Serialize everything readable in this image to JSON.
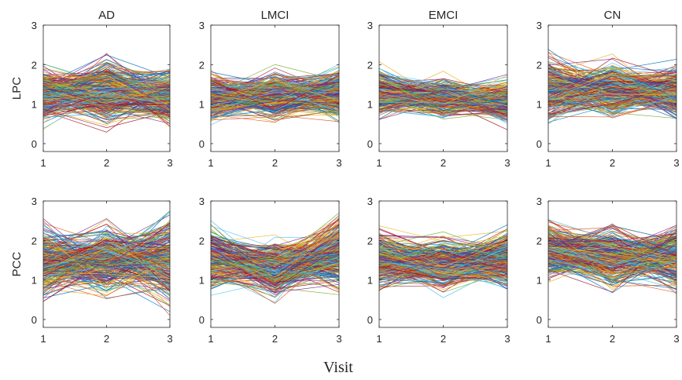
{
  "figure": {
    "xlabel": "Visit"
  },
  "chart_data": [
    {
      "type": "line",
      "title": "AD",
      "ylabel": "LPC",
      "x": [
        1,
        2,
        3
      ],
      "xlim": [
        1,
        3
      ],
      "ylim": [
        -0.2,
        3
      ],
      "xticks": [
        "1",
        "2",
        "3"
      ],
      "yticks": [
        "0",
        "1",
        "2",
        "3"
      ],
      "grid": false,
      "summary": {
        "n_lines": 300,
        "visit_ranges": [
          [
            0.2,
            2.2
          ],
          [
            0.2,
            2.5
          ],
          [
            0.4,
            2.2
          ]
        ],
        "visit_center": [
          1.2,
          1.3,
          1.2
        ]
      }
    },
    {
      "type": "line",
      "title": "LMCI",
      "ylabel": "",
      "x": [
        1,
        2,
        3
      ],
      "xlim": [
        1,
        3
      ],
      "ylim": [
        -0.2,
        3
      ],
      "xticks": [
        "1",
        "2",
        "3"
      ],
      "yticks": [
        "0",
        "1",
        "2",
        "3"
      ],
      "grid": false,
      "summary": {
        "n_lines": 300,
        "visit_ranges": [
          [
            0.4,
            2.15
          ],
          [
            0.45,
            2.1
          ],
          [
            0.5,
            2.25
          ]
        ],
        "visit_center": [
          1.2,
          1.2,
          1.3
        ]
      }
    },
    {
      "type": "line",
      "title": "EMCI",
      "ylabel": "",
      "x": [
        1,
        2,
        3
      ],
      "xlim": [
        1,
        3
      ],
      "ylim": [
        -0.2,
        3
      ],
      "xticks": [
        "1",
        "2",
        "3"
      ],
      "yticks": [
        "0",
        "1",
        "2",
        "3"
      ],
      "grid": false,
      "summary": {
        "n_lines": 300,
        "visit_ranges": [
          [
            0.5,
            2.15
          ],
          [
            0.4,
            1.85
          ],
          [
            0.3,
            1.85
          ]
        ],
        "visit_center": [
          1.3,
          1.15,
          1.05
        ]
      }
    },
    {
      "type": "line",
      "title": "CN",
      "ylabel": "",
      "x": [
        1,
        2,
        3
      ],
      "xlim": [
        1,
        3
      ],
      "ylim": [
        -0.2,
        3
      ],
      "xticks": [
        "1",
        "2",
        "3"
      ],
      "yticks": [
        "0",
        "1",
        "2",
        "3"
      ],
      "grid": false,
      "summary": {
        "n_lines": 300,
        "visit_ranges": [
          [
            0.5,
            2.7
          ],
          [
            0.5,
            2.35
          ],
          [
            0.45,
            2.2
          ]
        ],
        "visit_center": [
          1.4,
          1.35,
          1.3
        ]
      }
    },
    {
      "type": "line",
      "title": "",
      "ylabel": "PCC",
      "x": [
        1,
        2,
        3
      ],
      "xlim": [
        1,
        3
      ],
      "ylim": [
        -0.2,
        3
      ],
      "xticks": [
        "1",
        "2",
        "3"
      ],
      "yticks": [
        "0",
        "1",
        "2",
        "3"
      ],
      "grid": false,
      "summary": {
        "n_lines": 300,
        "visit_ranges": [
          [
            0.05,
            2.7
          ],
          [
            0.25,
            2.85
          ],
          [
            -0.3,
            2.75
          ]
        ],
        "visit_center": [
          1.5,
          1.55,
          1.5
        ]
      }
    },
    {
      "type": "line",
      "title": "",
      "ylabel": "",
      "x": [
        1,
        2,
        3
      ],
      "xlim": [
        1,
        3
      ],
      "ylim": [
        -0.2,
        3
      ],
      "xticks": [
        "1",
        "2",
        "3"
      ],
      "yticks": [
        "0",
        "1",
        "2",
        "3"
      ],
      "grid": false,
      "summary": {
        "n_lines": 300,
        "visit_ranges": [
          [
            0.45,
            2.55
          ],
          [
            0.25,
            2.25
          ],
          [
            0.55,
            3.0
          ]
        ],
        "visit_center": [
          1.55,
          1.3,
          1.7
        ]
      }
    },
    {
      "type": "line",
      "title": "",
      "ylabel": "",
      "x": [
        1,
        2,
        3
      ],
      "xlim": [
        1,
        3
      ],
      "ylim": [
        -0.2,
        3
      ],
      "xticks": [
        "1",
        "2",
        "3"
      ],
      "yticks": [
        "0",
        "1",
        "2",
        "3"
      ],
      "grid": false,
      "summary": {
        "n_lines": 300,
        "visit_ranges": [
          [
            0.55,
            2.5
          ],
          [
            0.35,
            2.3
          ],
          [
            0.4,
            2.4
          ]
        ],
        "visit_center": [
          1.55,
          1.4,
          1.5
        ]
      }
    },
    {
      "type": "line",
      "title": "",
      "ylabel": "",
      "x": [
        1,
        2,
        3
      ],
      "xlim": [
        1,
        3
      ],
      "ylim": [
        -0.2,
        3
      ],
      "xticks": [
        "1",
        "2",
        "3"
      ],
      "yticks": [
        "0",
        "1",
        "2",
        "3"
      ],
      "grid": false,
      "summary": {
        "n_lines": 300,
        "visit_ranges": [
          [
            0.8,
            2.7
          ],
          [
            0.3,
            2.5
          ],
          [
            0.45,
            2.75
          ]
        ],
        "visit_center": [
          1.75,
          1.6,
          1.6
        ]
      }
    }
  ],
  "colors": [
    "#0072BD",
    "#D95319",
    "#EDB120",
    "#7E2F8E",
    "#77AC30",
    "#4DBEEE",
    "#A2142F"
  ]
}
